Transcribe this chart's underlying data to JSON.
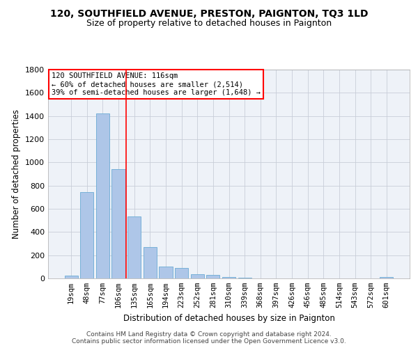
{
  "title": "120, SOUTHFIELD AVENUE, PRESTON, PAIGNTON, TQ3 1LD",
  "subtitle": "Size of property relative to detached houses in Paignton",
  "xlabel": "Distribution of detached houses by size in Paignton",
  "ylabel": "Number of detached properties",
  "categories": [
    "19sqm",
    "48sqm",
    "77sqm",
    "106sqm",
    "135sqm",
    "165sqm",
    "194sqm",
    "223sqm",
    "252sqm",
    "281sqm",
    "310sqm",
    "339sqm",
    "368sqm",
    "397sqm",
    "426sqm",
    "456sqm",
    "485sqm",
    "514sqm",
    "543sqm",
    "572sqm",
    "601sqm"
  ],
  "values": [
    22,
    745,
    1425,
    940,
    535,
    268,
    105,
    93,
    38,
    28,
    15,
    5,
    3,
    1,
    1,
    0,
    0,
    0,
    0,
    0,
    10
  ],
  "bar_color": "#aec6e8",
  "bar_edge_color": "#6aaad4",
  "vline_x": 3.5,
  "vline_color": "red",
  "annotation_text": "120 SOUTHFIELD AVENUE: 116sqm\n← 60% of detached houses are smaller (2,514)\n39% of semi-detached houses are larger (1,648) →",
  "annotation_box_color": "red",
  "footer1": "Contains HM Land Registry data © Crown copyright and database right 2024.",
  "footer2": "Contains public sector information licensed under the Open Government Licence v3.0.",
  "ylim": [
    0,
    1800
  ],
  "yticks": [
    0,
    200,
    400,
    600,
    800,
    1000,
    1200,
    1400,
    1600,
    1800
  ],
  "bg_color": "#eef2f8",
  "grid_color": "#c8cdd8"
}
